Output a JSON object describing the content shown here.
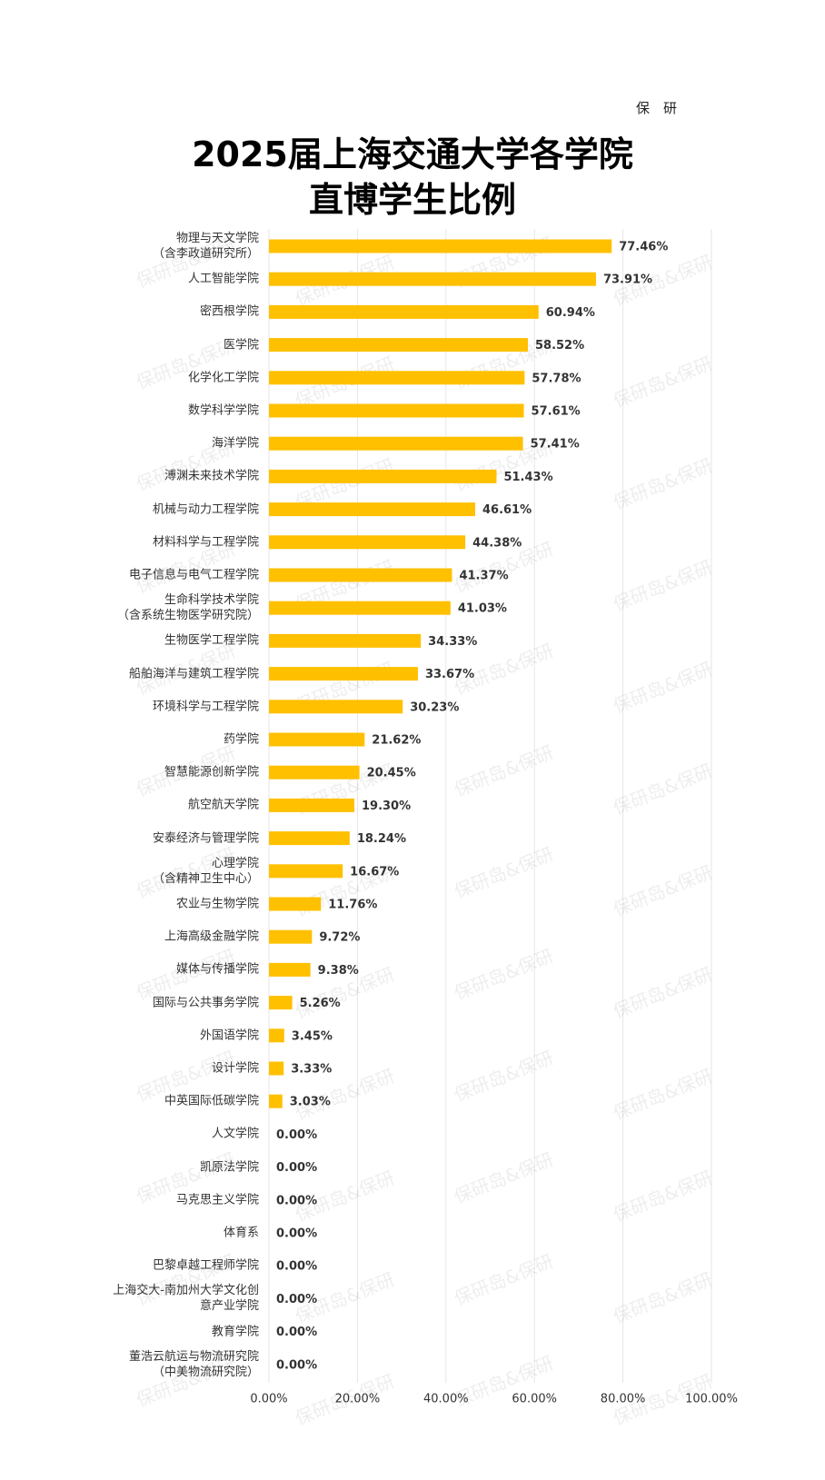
{
  "chart_data": {
    "type": "bar",
    "orientation": "horizontal",
    "title": "2025届上海交通大学各学院\n直博学生比例",
    "source_label": "保　研",
    "watermark": "保研岛&保研",
    "color": "#FFC000",
    "grid": true,
    "categories": [
      "物理与天文学院\n（含李政道研究所）",
      "人工智能学院",
      "密西根学院",
      "医学院",
      "化学化工学院",
      "数学科学学院",
      "海洋学院",
      "溥渊未来技术学院",
      "机械与动力工程学院",
      "材料科学与工程学院",
      "电子信息与电气工程学院",
      "生命科学技术学院\n（含系统生物医学研究院）",
      "生物医学工程学院",
      "船舶海洋与建筑工程学院",
      "环境科学与工程学院",
      "药学院",
      "智慧能源创新学院",
      "航空航天学院",
      "安泰经济与管理学院",
      "心理学院\n（含精神卫生中心）",
      "农业与生物学院",
      "上海高级金融学院",
      "媒体与传播学院",
      "国际与公共事务学院",
      "外国语学院",
      "设计学院",
      "中英国际低碳学院",
      "人文学院",
      "凯原法学院",
      "马克思主义学院",
      "体育系",
      "巴黎卓越工程师学院",
      "上海交大-南加州大学文化创\n意产业学院",
      "教育学院",
      "董浩云航运与物流研究院\n（中美物流研究院）"
    ],
    "values": [
      77.46,
      73.91,
      60.94,
      58.52,
      57.78,
      57.61,
      57.41,
      51.43,
      46.61,
      44.38,
      41.37,
      41.03,
      34.33,
      33.67,
      30.23,
      21.62,
      20.45,
      19.3,
      18.24,
      16.67,
      11.76,
      9.72,
      9.38,
      5.26,
      3.45,
      3.33,
      3.03,
      0,
      0,
      0,
      0,
      0,
      0,
      0,
      0
    ],
    "value_labels": [
      "77.46%",
      "73.91%",
      "60.94%",
      "58.52%",
      "57.78%",
      "57.61%",
      "57.41%",
      "51.43%",
      "46.61%",
      "44.38%",
      "41.37%",
      "41.03%",
      "34.33%",
      "33.67%",
      "30.23%",
      "21.62%",
      "20.45%",
      "19.30%",
      "18.24%",
      "16.67%",
      "11.76%",
      "9.72%",
      "9.38%",
      "5.26%",
      "3.45%",
      "3.33%",
      "3.03%",
      "0.00%",
      "0.00%",
      "0.00%",
      "0.00%",
      "0.00%",
      "0.00%",
      "0.00%",
      "0.00%"
    ],
    "xlim": [
      0,
      100
    ],
    "xticks": [
      {
        "value": 0,
        "label": "0.00%"
      },
      {
        "value": 20,
        "label": "20.00%"
      },
      {
        "value": 40,
        "label": "40.00%"
      },
      {
        "value": 60,
        "label": "60.00%"
      },
      {
        "value": 80,
        "label": "80.00%"
      },
      {
        "value": 100,
        "label": "100.00%"
      }
    ]
  }
}
